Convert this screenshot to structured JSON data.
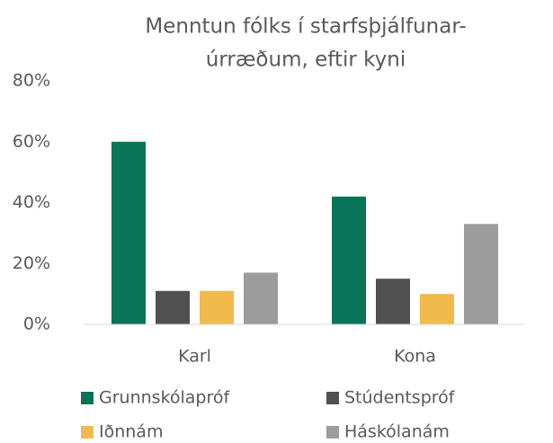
{
  "chart_data": {
    "type": "bar",
    "title": [
      "Menntun fólks í starfsþjálfunar-",
      "úrræðum, eftir kyni"
    ],
    "categories": [
      "Karl",
      "Kona"
    ],
    "series": [
      {
        "name": "Grunnskólapróf",
        "color": "#0b7357",
        "values": [
          60,
          42
        ]
      },
      {
        "name": "Stúdentspróf",
        "color": "#505050",
        "values": [
          11,
          15
        ]
      },
      {
        "name": "Iðnnám",
        "color": "#f0bb4c",
        "values": [
          11,
          10
        ]
      },
      {
        "name": "Háskólanám",
        "color": "#9c9c9c",
        "values": [
          17,
          33
        ]
      }
    ],
    "ylim": [
      0,
      80
    ],
    "yticks": [
      {
        "value": 0,
        "label": "0%"
      },
      {
        "value": 20,
        "label": "20%"
      },
      {
        "value": 40,
        "label": "40%"
      },
      {
        "value": 60,
        "label": "60%"
      },
      {
        "value": 80,
        "label": "80%"
      }
    ],
    "grid": false,
    "legend": "bottom"
  }
}
